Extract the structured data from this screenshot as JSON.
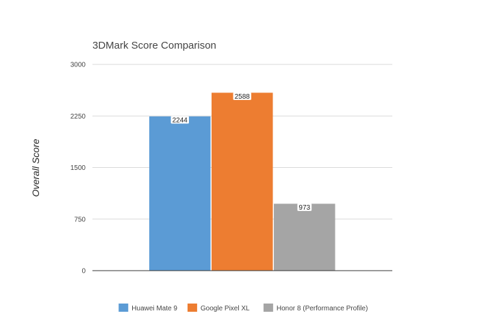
{
  "chart_data": {
    "type": "bar",
    "title": "3DMark Score Comparison",
    "xlabel": "",
    "ylabel": "Overall Score",
    "ylim": [
      0,
      3000
    ],
    "yticks": [
      0,
      750,
      1500,
      2250,
      3000
    ],
    "grid": true,
    "legend_position": "bottom",
    "data_labels": true,
    "series": [
      {
        "name": "Huawei Mate 9",
        "value": 2244,
        "color": "#5B9BD5"
      },
      {
        "name": "Google Pixel XL",
        "value": 2588,
        "color": "#ED7D31"
      },
      {
        "name": "Honor 8 (Performance Profile)",
        "value": 973,
        "color": "#A5A5A5"
      }
    ]
  }
}
